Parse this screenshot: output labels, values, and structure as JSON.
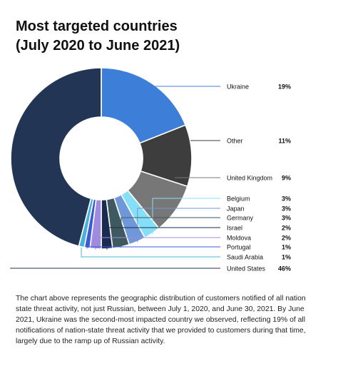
{
  "title_line1": "Most targeted countries",
  "title_line2": "(July 2020 to June 2021)",
  "chart_data": {
    "type": "pie",
    "donut": true,
    "start": "top, clockwise",
    "slices": [
      {
        "label": "Ukraine",
        "value": 19,
        "value_label": "19%",
        "color": "#3d7fd8"
      },
      {
        "label": "Other",
        "value": 11,
        "value_label": "11%",
        "color": "#3d3d3d"
      },
      {
        "label": "United Kingdom",
        "value": 9,
        "value_label": "9%",
        "color": "#777777"
      },
      {
        "label": "Belgium",
        "value": 3,
        "value_label": "3%",
        "color": "#85e0f7"
      },
      {
        "label": "Japan",
        "value": 3,
        "value_label": "3%",
        "color": "#6f98d9"
      },
      {
        "label": "Germany",
        "value": 3,
        "value_label": "3%",
        "color": "#3e5a60"
      },
      {
        "label": "Israel",
        "value": 2,
        "value_label": "2%",
        "color": "#1a2b52"
      },
      {
        "label": "Moldova",
        "value": 2,
        "value_label": "2%",
        "color": "#9f8bdf"
      },
      {
        "label": "Portugal",
        "value": 1,
        "value_label": "1%",
        "color": "#3b59d6"
      },
      {
        "label": "Saudi Arabia",
        "value": 1,
        "value_label": "1%",
        "color": "#45b3d8"
      },
      {
        "label": "United States",
        "value": 46,
        "value_label": "46%",
        "color": "#223554"
      }
    ],
    "legend_placement": "right, with leader lines"
  },
  "description": "The chart above represents the geographic distribution of customers notified of all nation state threat activity, not just Russian, between July 1, 2020, and June 30, 2021. By June 2021, Ukraine was the second-most impacted country we observed, reflecting 19% of all notifications of nation-state threat activity that we provided to customers during that time, largely due to the ramp up of Russian activity."
}
